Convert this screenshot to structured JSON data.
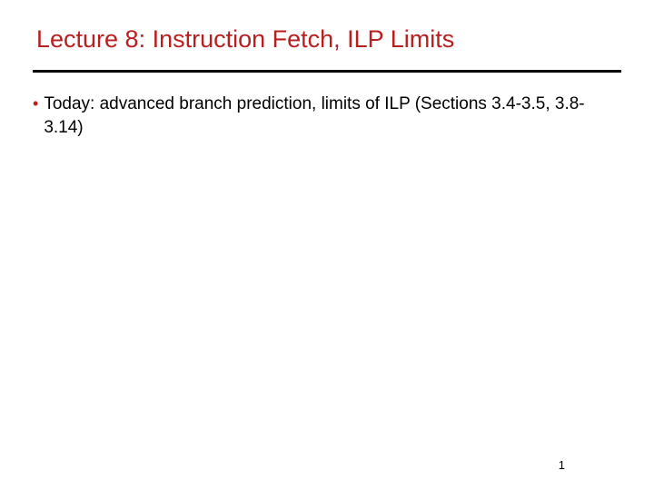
{
  "slide": {
    "title": "Lecture 8: Instruction Fetch, ILP Limits",
    "title_color": "#b82020",
    "title_fontsize": 27,
    "divider_color": "#000000",
    "divider_width": 3,
    "background_color": "#ffffff",
    "bullets": [
      {
        "text": "Today: advanced branch prediction, limits of ILP (Sections 3.4-3.5, 3.8-3.14)",
        "marker_color": "#b82020",
        "text_color": "#000000",
        "fontsize": 19
      }
    ],
    "page_number": "1",
    "page_number_fontsize": 13
  }
}
